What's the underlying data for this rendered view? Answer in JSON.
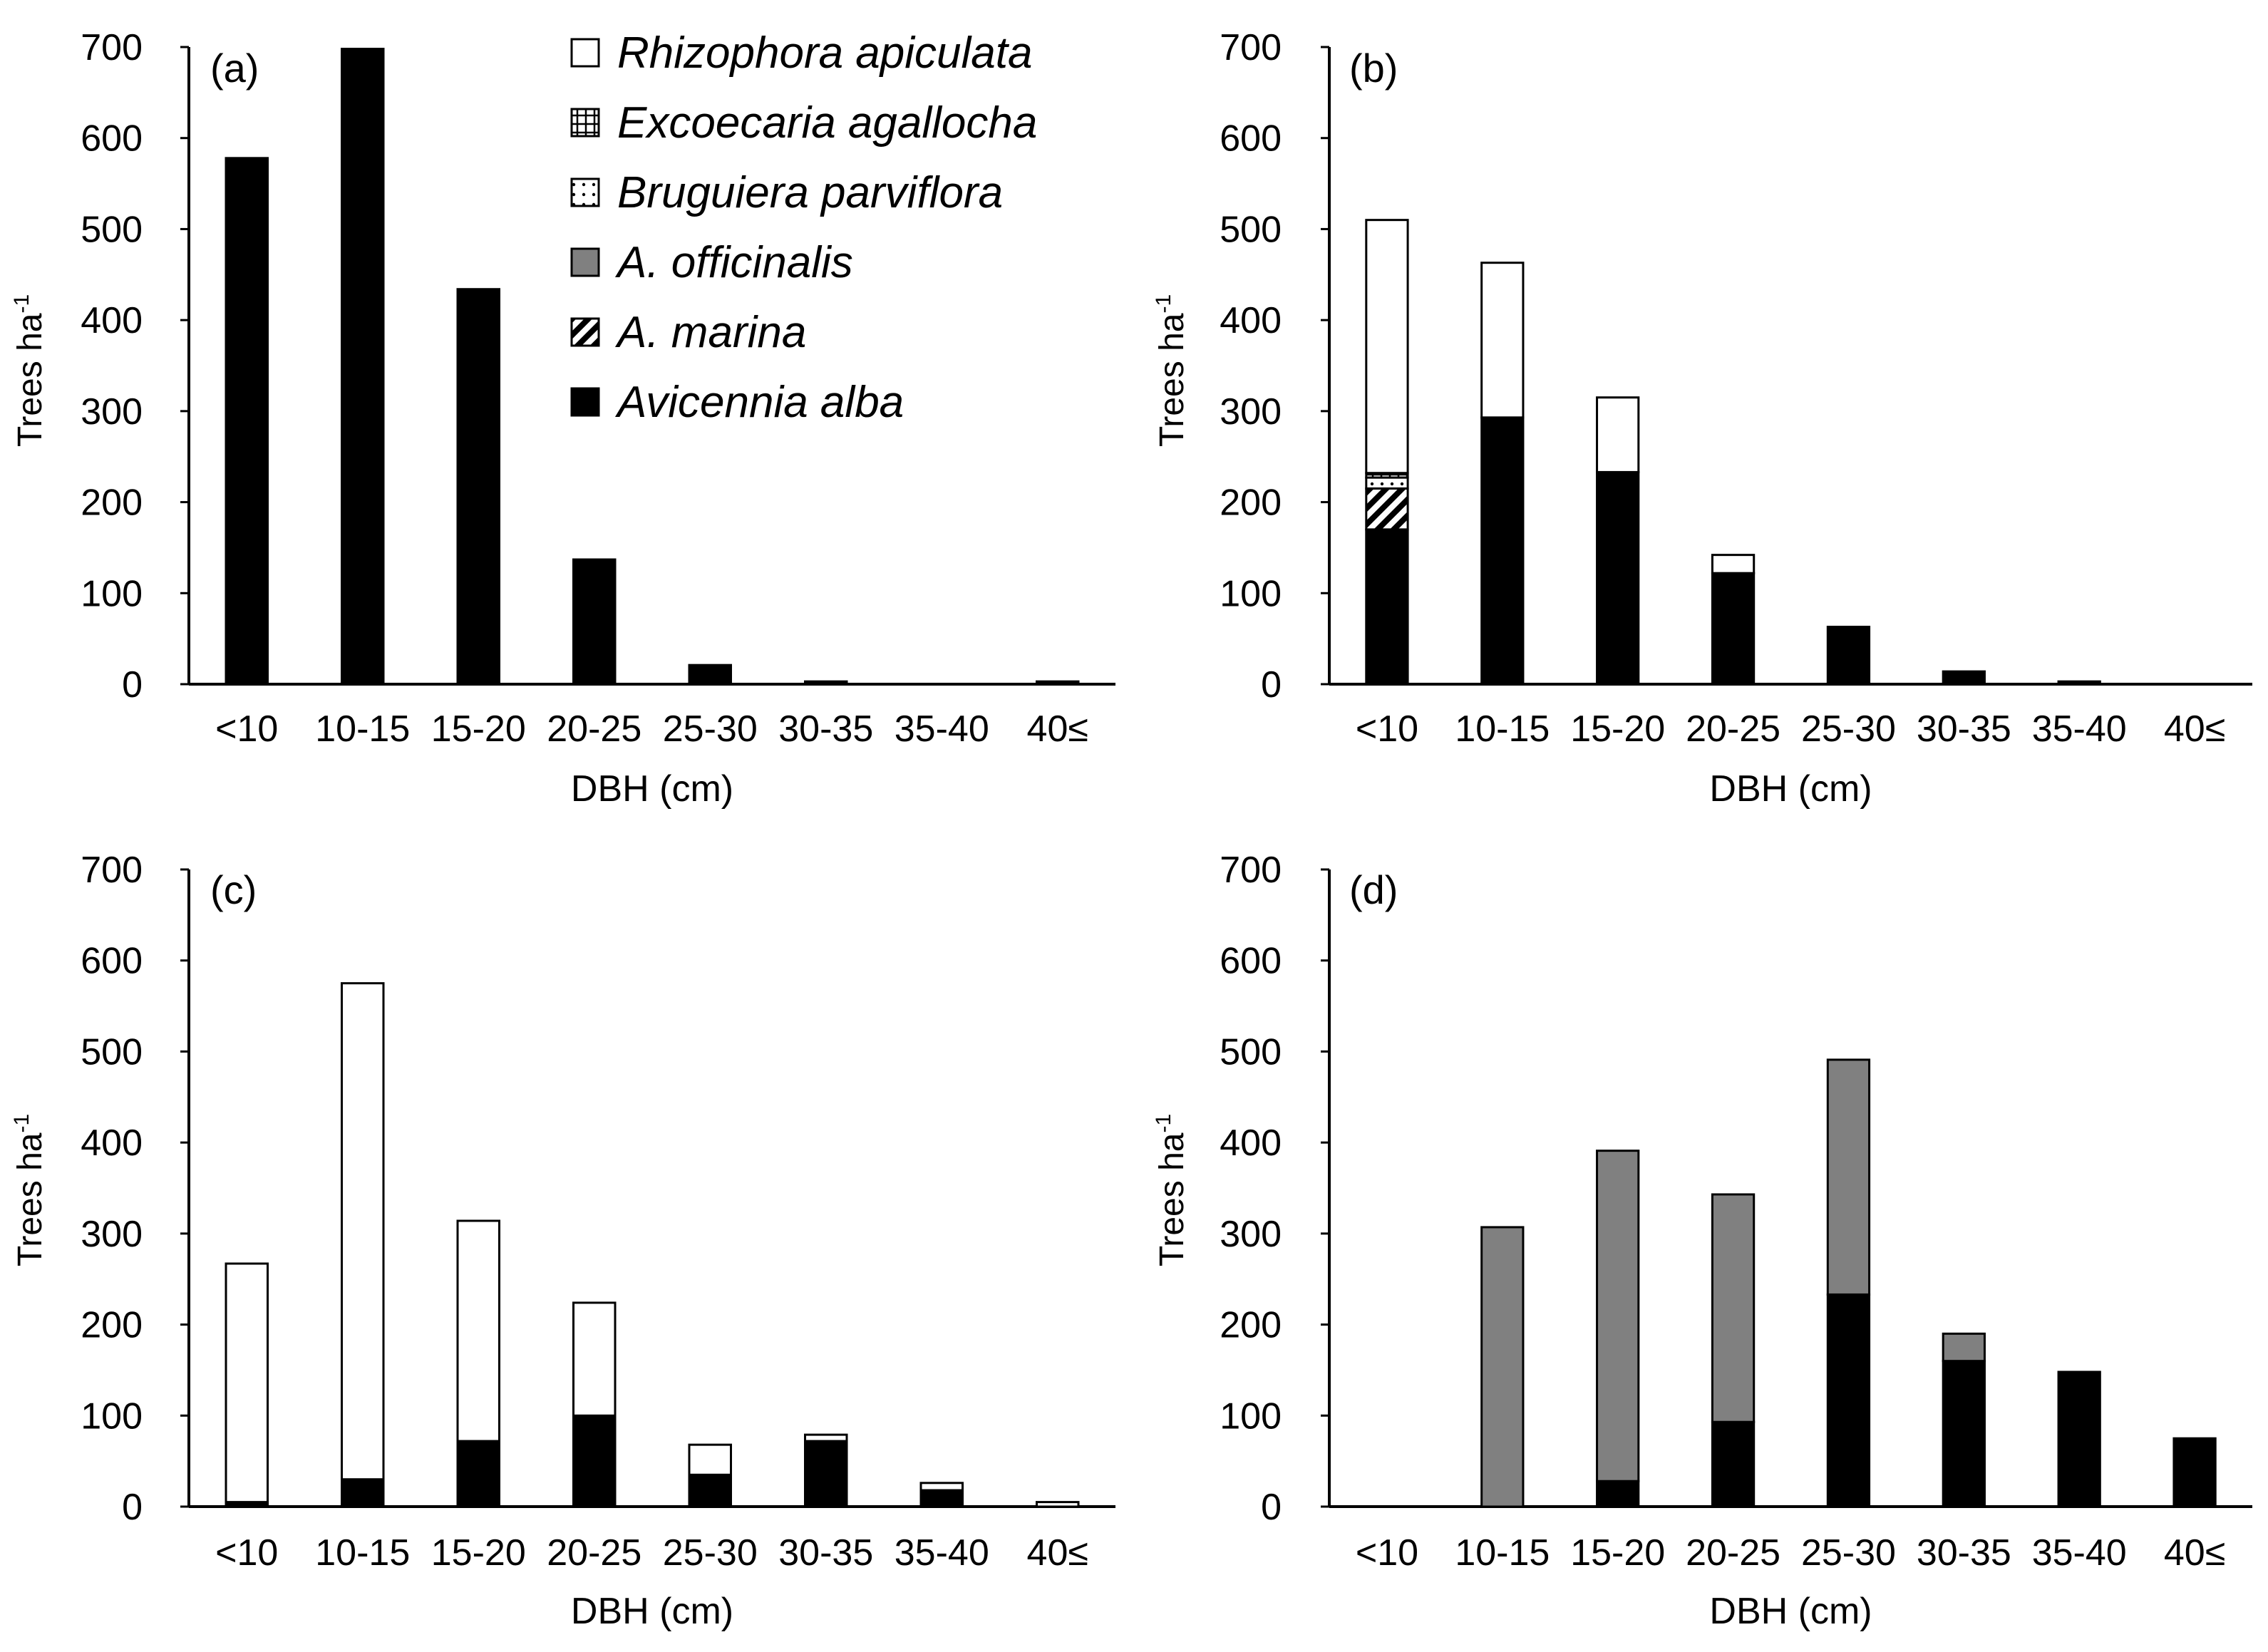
{
  "figure": {
    "legend": [
      {
        "key": "rhizophora",
        "label": "Rhizophora apiculata",
        "pattern": "white"
      },
      {
        "key": "excoecaria",
        "label": "Excoecaria agallocha",
        "pattern": "grid"
      },
      {
        "key": "bruguiera",
        "label": "Bruguiera parviflora",
        "pattern": "dot"
      },
      {
        "key": "officinalis",
        "label": "A. officinalis",
        "pattern": "gray"
      },
      {
        "key": "marina",
        "label": "A. marina",
        "pattern": "diag"
      },
      {
        "key": "alba",
        "label": "Avicennia alba",
        "pattern": "black"
      }
    ],
    "colors": {
      "alba": "#000000",
      "officinalis": "#808080",
      "rhizophora": "#ffffff",
      "stroke": "#000000"
    }
  },
  "chart_data": [
    {
      "panel_label": "(a)",
      "type": "bar",
      "stacked": true,
      "categories": [
        "<10",
        "10-15",
        "15-20",
        "20-25",
        "25-30",
        "30-35",
        "35-40",
        "40≤"
      ],
      "xlabel": "DBH (cm)",
      "ylabel": "Trees ha",
      "ylabel_sup": "-1",
      "ylim": [
        0,
        700
      ],
      "yticks": [
        0,
        100,
        200,
        300,
        400,
        500,
        600,
        700
      ],
      "series": [
        {
          "name": "Avicennia alba",
          "values": [
            578,
            698,
            434,
            137,
            21,
            3,
            0,
            3
          ]
        },
        {
          "name": "A. marina",
          "values": [
            0,
            0,
            0,
            0,
            0,
            0,
            0,
            0
          ]
        },
        {
          "name": "A. officinalis",
          "values": [
            0,
            0,
            0,
            0,
            0,
            0,
            0,
            0
          ]
        },
        {
          "name": "Bruguiera parviflora",
          "values": [
            0,
            0,
            0,
            0,
            0,
            0,
            0,
            0
          ]
        },
        {
          "name": "Excoecaria agallocha",
          "values": [
            0,
            0,
            0,
            0,
            0,
            0,
            0,
            0
          ]
        },
        {
          "name": "Rhizophora apiculata",
          "values": [
            0,
            0,
            0,
            0,
            0,
            0,
            0,
            0
          ]
        }
      ]
    },
    {
      "panel_label": "(b)",
      "type": "bar",
      "stacked": true,
      "categories": [
        "<10",
        "10-15",
        "15-20",
        "20-25",
        "25-30",
        "30-35",
        "35-40",
        "40≤"
      ],
      "xlabel": "DBH (cm)",
      "ylabel": "Trees ha",
      "ylabel_sup": "-1",
      "ylim": [
        0,
        700
      ],
      "yticks": [
        0,
        100,
        200,
        300,
        400,
        500,
        600,
        700
      ],
      "series": [
        {
          "name": "Avicennia alba",
          "values": [
            170,
            293,
            233,
            122,
            63,
            14,
            3,
            0
          ]
        },
        {
          "name": "A. marina",
          "values": [
            45,
            0,
            0,
            0,
            0,
            0,
            0,
            0
          ]
        },
        {
          "name": "A. officinalis",
          "values": [
            0,
            0,
            0,
            0,
            0,
            0,
            0,
            0
          ]
        },
        {
          "name": "Bruguiera parviflora",
          "values": [
            12,
            0,
            0,
            0,
            0,
            0,
            0,
            0
          ]
        },
        {
          "name": "Excoecaria agallocha",
          "values": [
            5,
            0,
            0,
            0,
            0,
            0,
            0,
            0
          ]
        },
        {
          "name": "Rhizophora apiculata",
          "values": [
            278,
            170,
            82,
            20,
            0,
            0,
            0,
            0
          ]
        }
      ]
    },
    {
      "panel_label": "(c)",
      "type": "bar",
      "stacked": true,
      "categories": [
        "<10",
        "10-15",
        "15-20",
        "20-25",
        "25-30",
        "30-35",
        "35-40",
        "40≤"
      ],
      "xlabel": "DBH (cm)",
      "ylabel": "Trees ha",
      "ylabel_sup": "-1",
      "ylim": [
        0,
        700
      ],
      "yticks": [
        0,
        100,
        200,
        300,
        400,
        500,
        600,
        700
      ],
      "series": [
        {
          "name": "Avicennia alba",
          "values": [
            5,
            30,
            72,
            100,
            35,
            72,
            18,
            0
          ]
        },
        {
          "name": "A. marina",
          "values": [
            0,
            0,
            0,
            0,
            0,
            0,
            0,
            0
          ]
        },
        {
          "name": "A. officinalis",
          "values": [
            0,
            0,
            0,
            0,
            0,
            0,
            0,
            0
          ]
        },
        {
          "name": "Bruguiera parviflora",
          "values": [
            0,
            0,
            0,
            0,
            0,
            0,
            0,
            0
          ]
        },
        {
          "name": "Excoecaria agallocha",
          "values": [
            0,
            0,
            0,
            0,
            0,
            0,
            0,
            0
          ]
        },
        {
          "name": "Rhizophora apiculata",
          "values": [
            262,
            545,
            242,
            124,
            33,
            7,
            8,
            5
          ]
        }
      ]
    },
    {
      "panel_label": "(d)",
      "type": "bar",
      "stacked": true,
      "categories": [
        "<10",
        "10-15",
        "15-20",
        "20-25",
        "25-30",
        "30-35",
        "35-40",
        "40≤"
      ],
      "xlabel": "DBH (cm)",
      "ylabel": "Trees ha",
      "ylabel_sup": "-1",
      "ylim": [
        0,
        700
      ],
      "yticks": [
        0,
        100,
        200,
        300,
        400,
        500,
        600,
        700
      ],
      "series": [
        {
          "name": "Avicennia alba",
          "values": [
            0,
            0,
            28,
            93,
            233,
            160,
            148,
            75
          ]
        },
        {
          "name": "A. marina",
          "values": [
            0,
            0,
            0,
            0,
            0,
            0,
            0,
            0
          ]
        },
        {
          "name": "A. officinalis",
          "values": [
            0,
            307,
            363,
            250,
            258,
            30,
            0,
            0
          ]
        },
        {
          "name": "Bruguiera parviflora",
          "values": [
            0,
            0,
            0,
            0,
            0,
            0,
            0,
            0
          ]
        },
        {
          "name": "Excoecaria agallocha",
          "values": [
            0,
            0,
            0,
            0,
            0,
            0,
            0,
            0
          ]
        },
        {
          "name": "Rhizophora apiculata",
          "values": [
            0,
            0,
            0,
            0,
            0,
            0,
            0,
            0
          ]
        }
      ]
    }
  ]
}
